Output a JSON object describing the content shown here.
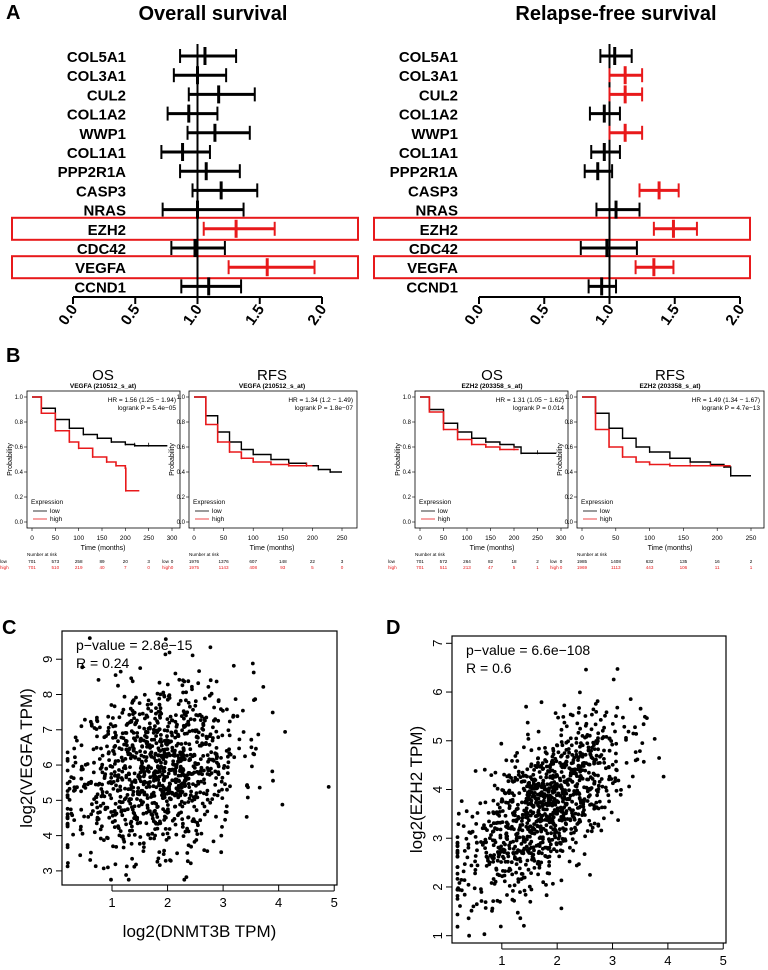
{
  "panel_labels": {
    "a": "A",
    "b": "B",
    "c": "C",
    "d": "D"
  },
  "chart_data": [
    {
      "id": "forest_os",
      "type": "forest",
      "title": "Overall survival",
      "xlim": [
        0.0,
        2.0
      ],
      "xticks": [
        "0.0",
        "0.5",
        "1.0",
        "1.5",
        "2.0"
      ],
      "reference_line": 1.0,
      "highlighted_rows": [
        "EZH2",
        "VEGFA"
      ],
      "significant_color": "#e8191b",
      "default_color": "#000000",
      "rows": [
        {
          "gene": "COL5A1",
          "hr": 1.06,
          "lo": 0.86,
          "hi": 1.31,
          "significant": false
        },
        {
          "gene": "COL3A1",
          "hr": 1.0,
          "lo": 0.81,
          "hi": 1.23,
          "significant": false
        },
        {
          "gene": "CUL2",
          "hr": 1.17,
          "lo": 0.93,
          "hi": 1.46,
          "significant": false
        },
        {
          "gene": "COL1A2",
          "hr": 0.93,
          "lo": 0.76,
          "hi": 1.16,
          "significant": false
        },
        {
          "gene": "WWP1",
          "hr": 1.14,
          "lo": 0.92,
          "hi": 1.42,
          "significant": false
        },
        {
          "gene": "COL1A1",
          "hr": 0.88,
          "lo": 0.71,
          "hi": 1.1,
          "significant": false
        },
        {
          "gene": "PPP2R1A",
          "hr": 1.07,
          "lo": 0.86,
          "hi": 1.34,
          "significant": false
        },
        {
          "gene": "CASP3",
          "hr": 1.19,
          "lo": 0.96,
          "hi": 1.48,
          "significant": false
        },
        {
          "gene": "NRAS",
          "hr": 1.0,
          "lo": 0.72,
          "hi": 1.37,
          "significant": false
        },
        {
          "gene": "EZH2",
          "hr": 1.31,
          "lo": 1.05,
          "hi": 1.62,
          "significant": true
        },
        {
          "gene": "CDC42",
          "hr": 0.98,
          "lo": 0.79,
          "hi": 1.22,
          "significant": false
        },
        {
          "gene": "VEGFA",
          "hr": 1.56,
          "lo": 1.25,
          "hi": 1.94,
          "significant": true
        },
        {
          "gene": "CCND1",
          "hr": 1.09,
          "lo": 0.87,
          "hi": 1.35,
          "significant": false
        }
      ]
    },
    {
      "id": "forest_rfs",
      "type": "forest",
      "title": "Relapse-free survival",
      "xlim": [
        0.0,
        2.0
      ],
      "xticks": [
        "0.0",
        "0.5",
        "1.0",
        "1.5",
        "2.0"
      ],
      "reference_line": 1.0,
      "highlighted_rows": [
        "EZH2",
        "VEGFA"
      ],
      "significant_color": "#e8191b",
      "default_color": "#000000",
      "rows": [
        {
          "gene": "COL5A1",
          "hr": 1.04,
          "lo": 0.93,
          "hi": 1.17,
          "significant": false
        },
        {
          "gene": "COL3A1",
          "hr": 1.12,
          "lo": 1.0,
          "hi": 1.25,
          "significant": true
        },
        {
          "gene": "CUL2",
          "hr": 1.12,
          "lo": 1.0,
          "hi": 1.25,
          "significant": true
        },
        {
          "gene": "COL1A2",
          "hr": 0.96,
          "lo": 0.85,
          "hi": 1.08,
          "significant": false
        },
        {
          "gene": "WWP1",
          "hr": 1.12,
          "lo": 1.0,
          "hi": 1.25,
          "significant": true
        },
        {
          "gene": "COL1A1",
          "hr": 0.96,
          "lo": 0.86,
          "hi": 1.08,
          "significant": false
        },
        {
          "gene": "PPP2R1A",
          "hr": 0.91,
          "lo": 0.81,
          "hi": 1.02,
          "significant": false
        },
        {
          "gene": "CASP3",
          "hr": 1.38,
          "lo": 1.23,
          "hi": 1.53,
          "significant": true
        },
        {
          "gene": "NRAS",
          "hr": 1.05,
          "lo": 0.9,
          "hi": 1.23,
          "significant": false
        },
        {
          "gene": "EZH2",
          "hr": 1.49,
          "lo": 1.34,
          "hi": 1.67,
          "significant": true
        },
        {
          "gene": "CDC42",
          "hr": 0.98,
          "lo": 0.78,
          "hi": 1.21,
          "significant": false
        },
        {
          "gene": "VEGFA",
          "hr": 1.34,
          "lo": 1.2,
          "hi": 1.49,
          "significant": true
        },
        {
          "gene": "CCND1",
          "hr": 0.94,
          "lo": 0.84,
          "hi": 1.05,
          "significant": false
        }
      ]
    },
    {
      "id": "km_vegfa_os",
      "type": "line",
      "subtype": "kaplan-meier",
      "title": "OS",
      "subtitle": "VEGFA (210512_s_at)",
      "hr_text": "HR = 1.56 (1.25 − 1.94)",
      "p_text": "logrank P = 5.4e−05",
      "xlabel": "Time (months)",
      "ylabel": "Probability",
      "xlim": [
        0,
        300
      ],
      "xticks": [
        0,
        50,
        100,
        150,
        200,
        250,
        300
      ],
      "ylim": [
        0,
        1
      ],
      "yticks": [
        "0.0",
        "0.2",
        "0.4",
        "0.6",
        "0.8",
        "1.0"
      ],
      "legend": {
        "title": "Expression",
        "low": "low",
        "high": "high"
      },
      "risk": {
        "header": "Number at risk",
        "times": [
          0,
          50,
          100,
          150,
          200,
          250,
          300
        ],
        "low": [
          "701",
          "573",
          "258",
          "89",
          "20",
          "3",
          "0"
        ],
        "high": [
          "701",
          "510",
          "219",
          "40",
          "7",
          "0",
          "0"
        ]
      },
      "series": [
        {
          "name": "low",
          "color": "#000000",
          "x": [
            0,
            20,
            50,
            80,
            110,
            140,
            170,
            200,
            220,
            250,
            290
          ],
          "y": [
            1.0,
            0.91,
            0.82,
            0.75,
            0.7,
            0.67,
            0.64,
            0.62,
            0.61,
            0.61,
            0.61
          ]
        },
        {
          "name": "high",
          "color": "#e8191b",
          "x": [
            0,
            20,
            50,
            80,
            100,
            130,
            160,
            180,
            200,
            201,
            230
          ],
          "y": [
            1.0,
            0.87,
            0.73,
            0.64,
            0.59,
            0.52,
            0.48,
            0.45,
            0.43,
            0.25,
            0.25
          ]
        }
      ]
    },
    {
      "id": "km_vegfa_rfs",
      "type": "line",
      "subtype": "kaplan-meier",
      "title": "RFS",
      "subtitle": "VEGFA (210512_s_at)",
      "hr_text": "HR = 1.34 (1.2 − 1.49)",
      "p_text": "logrank P = 1.8e−07",
      "xlabel": "Time (months)",
      "ylabel": "Probability",
      "xlim": [
        0,
        250
      ],
      "xticks": [
        0,
        50,
        100,
        150,
        200,
        250
      ],
      "ylim": [
        0,
        1
      ],
      "yticks": [
        "0.0",
        "0.2",
        "0.4",
        "0.6",
        "0.8",
        "1.0"
      ],
      "legend": {
        "title": "Expression",
        "low": "low",
        "high": "high"
      },
      "risk": {
        "header": "Number at risk",
        "times": [
          0,
          50,
          100,
          150,
          200,
          250
        ],
        "low": [
          "1976",
          "1376",
          "607",
          "148",
          "22",
          "3"
        ],
        "high": [
          "1975",
          "1143",
          "408",
          "93",
          "5",
          "0"
        ]
      },
      "series": [
        {
          "name": "low",
          "color": "#000000",
          "x": [
            0,
            20,
            40,
            60,
            80,
            100,
            130,
            160,
            190,
            210,
            230,
            250
          ],
          "y": [
            1.0,
            0.85,
            0.72,
            0.64,
            0.58,
            0.54,
            0.5,
            0.47,
            0.45,
            0.42,
            0.4,
            0.4
          ]
        },
        {
          "name": "high",
          "color": "#e8191b",
          "x": [
            0,
            20,
            40,
            60,
            80,
            100,
            130,
            160,
            190,
            200
          ],
          "y": [
            1.0,
            0.78,
            0.64,
            0.56,
            0.51,
            0.48,
            0.46,
            0.45,
            0.45,
            0.45
          ]
        }
      ]
    },
    {
      "id": "km_ezh2_os",
      "type": "line",
      "subtype": "kaplan-meier",
      "title": "OS",
      "subtitle": "EZH2 (203358_s_at)",
      "hr_text": "HR = 1.31 (1.05 − 1.62)",
      "p_text": "logrank P = 0.014",
      "xlabel": "Time (months)",
      "ylabel": "Probability",
      "xlim": [
        0,
        300
      ],
      "xticks": [
        0,
        50,
        100,
        150,
        200,
        250,
        300
      ],
      "ylim": [
        0,
        1
      ],
      "yticks": [
        "0.0",
        "0.2",
        "0.4",
        "0.6",
        "0.8",
        "1.0"
      ],
      "legend": {
        "title": "Expression",
        "low": "low",
        "high": "high"
      },
      "risk": {
        "header": "Number at risk",
        "times": [
          0,
          50,
          100,
          150,
          200,
          250,
          300
        ],
        "low": [
          "701",
          "572",
          "264",
          "82",
          "18",
          "2",
          "0"
        ],
        "high": [
          "701",
          "511",
          "213",
          "47",
          "5",
          "1",
          "0"
        ]
      },
      "series": [
        {
          "name": "low",
          "color": "#000000",
          "x": [
            0,
            20,
            50,
            80,
            110,
            140,
            170,
            200,
            215,
            250,
            290
          ],
          "y": [
            1.0,
            0.9,
            0.79,
            0.72,
            0.67,
            0.64,
            0.62,
            0.6,
            0.55,
            0.55,
            0.55
          ]
        },
        {
          "name": "high",
          "color": "#e8191b",
          "x": [
            0,
            20,
            50,
            80,
            110,
            140,
            170,
            200,
            210
          ],
          "y": [
            1.0,
            0.88,
            0.74,
            0.66,
            0.62,
            0.6,
            0.58,
            0.58,
            0.58
          ]
        }
      ]
    },
    {
      "id": "km_ezh2_rfs",
      "type": "line",
      "subtype": "kaplan-meier",
      "title": "RFS",
      "subtitle": "EZH2 (203358_s_at)",
      "hr_text": "HR = 1.49 (1.34 − 1.67)",
      "p_text": "logrank P = 4.7e−13",
      "xlabel": "Time (months)",
      "ylabel": "Probability",
      "xlim": [
        0,
        250
      ],
      "xticks": [
        0,
        50,
        100,
        150,
        200,
        250
      ],
      "ylim": [
        0,
        1
      ],
      "yticks": [
        "0.0",
        "0.2",
        "0.4",
        "0.6",
        "0.8",
        "1.0"
      ],
      "legend": {
        "title": "Expression",
        "low": "low",
        "high": "high"
      },
      "risk": {
        "header": "Number at risk",
        "times": [
          0,
          50,
          100,
          150,
          200,
          250
        ],
        "low": [
          "1985",
          "1408",
          "632",
          "135",
          "16",
          "2"
        ],
        "high": [
          "1969",
          "1113",
          "443",
          "106",
          "11",
          "1"
        ]
      },
      "series": [
        {
          "name": "low",
          "color": "#000000",
          "x": [
            0,
            20,
            40,
            60,
            80,
            100,
            130,
            160,
            190,
            210,
            220,
            250
          ],
          "y": [
            1.0,
            0.87,
            0.75,
            0.67,
            0.6,
            0.56,
            0.51,
            0.48,
            0.46,
            0.44,
            0.37,
            0.37
          ]
        },
        {
          "name": "high",
          "color": "#e8191b",
          "x": [
            0,
            20,
            40,
            60,
            80,
            100,
            130,
            160,
            190,
            220
          ],
          "y": [
            1.0,
            0.74,
            0.6,
            0.52,
            0.48,
            0.46,
            0.45,
            0.45,
            0.45,
            0.45
          ]
        }
      ]
    },
    {
      "id": "scatter_vegfa",
      "type": "scatter",
      "xlabel": "log2(DNMT3B TPM)",
      "ylabel": "log2(VEGFA TPM)",
      "annotation_p": "p−value = 2.8e−15",
      "annotation_r": "R = 0.24",
      "xlim": [
        0.1,
        5.05
      ],
      "ylim": [
        2.6,
        9.8
      ],
      "xticks": [
        1,
        2,
        3,
        4,
        5
      ],
      "yticks": [
        3,
        4,
        5,
        6,
        7,
        8,
        9
      ],
      "n_points": 1100,
      "x_mean": 1.8,
      "x_sd": 0.75,
      "y_mean": 5.9,
      "y_sd": 1.2,
      "r": 0.24,
      "seed": 11
    },
    {
      "id": "scatter_ezh2",
      "type": "scatter",
      "xlabel": "log2(DNMT3B TPM)",
      "ylabel": "log2(EZH2 TPM)",
      "annotation_p": "p−value = 6.6e−108",
      "annotation_r": "R = 0.6",
      "xlim": [
        0.1,
        5.05
      ],
      "ylim": [
        0.85,
        7.15
      ],
      "xticks": [
        1,
        2,
        3,
        4,
        5
      ],
      "yticks": [
        1,
        2,
        3,
        4,
        5,
        6,
        7
      ],
      "n_points": 1100,
      "x_mean": 1.75,
      "x_sd": 0.72,
      "y_mean": 3.6,
      "y_sd": 0.9,
      "r": 0.6,
      "seed": 23
    }
  ]
}
